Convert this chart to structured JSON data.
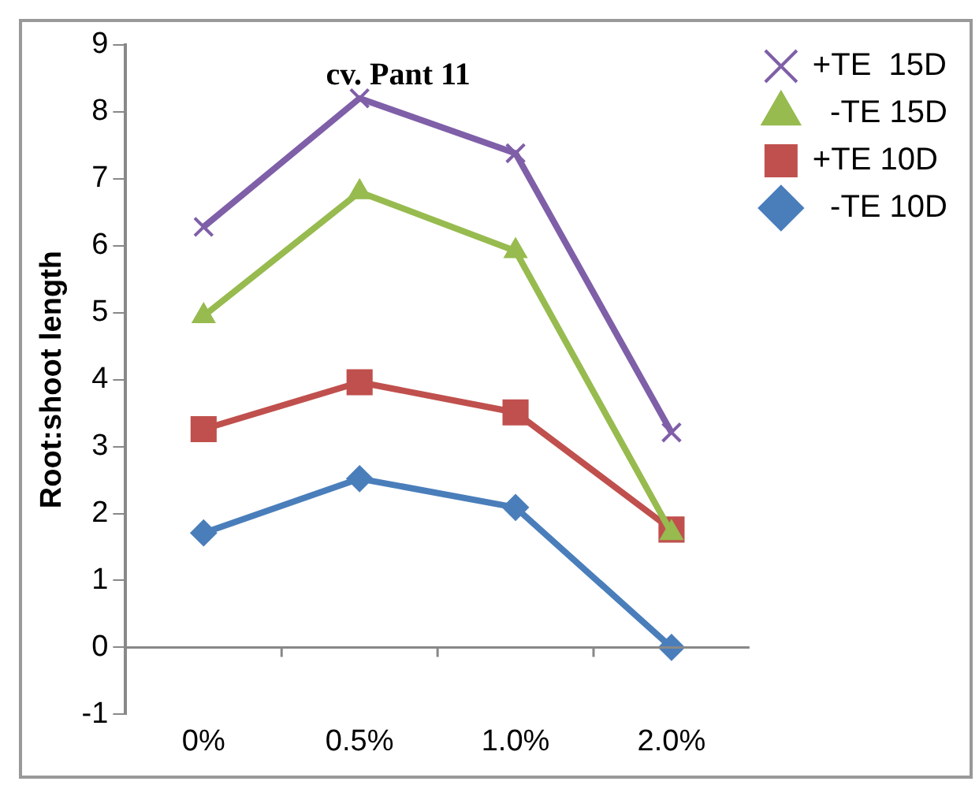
{
  "chart_data": {
    "type": "line",
    "title": "cv. Pant 11",
    "ylabel": "Root:shoot length",
    "categories": [
      "0%",
      "0.5%",
      "1.0%",
      "2.0%"
    ],
    "series": [
      {
        "name": "+TE  15D",
        "color": "#7f5fa8",
        "marker": "cross",
        "values": [
          6.28,
          8.2,
          7.38,
          3.21
        ]
      },
      {
        "name": "  -TE 15D",
        "color": "#97bb4f",
        "marker": "triangle",
        "values": [
          4.95,
          6.8,
          5.92,
          1.71
        ]
      },
      {
        "name": "+TE 10D",
        "color": "#c0504d",
        "marker": "square",
        "values": [
          3.26,
          3.96,
          3.51,
          1.76
        ]
      },
      {
        "name": "  -TE 10D",
        "color": "#4a7ebb",
        "marker": "diamond",
        "values": [
          1.71,
          2.52,
          2.09,
          0
        ]
      }
    ],
    "ylim": [
      -1,
      9
    ],
    "yticks": [
      -1,
      0,
      1,
      2,
      3,
      4,
      5,
      6,
      7,
      8,
      9
    ],
    "grid": false,
    "legend": "top right"
  }
}
